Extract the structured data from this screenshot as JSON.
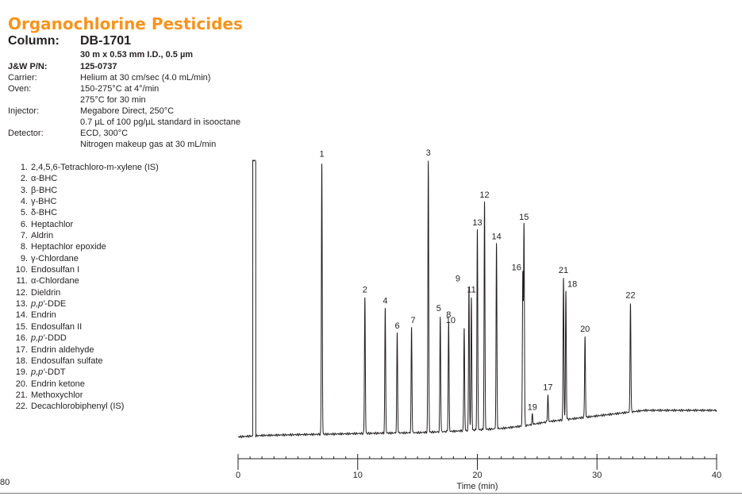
{
  "colors": {
    "title": "#f7941d",
    "text": "#231f20",
    "trace": "#231f20"
  },
  "header": {
    "title": "Organochlorine Pesticides",
    "column_label": "Column:",
    "column_value": "DB-1701"
  },
  "specs": [
    {
      "label": "",
      "lines": [
        "30 m x 0.53 mm I.D., 0.5 µm"
      ],
      "bold": true
    },
    {
      "label": "J&W P/N:",
      "lines": [
        "125-0737"
      ],
      "bold": true
    },
    {
      "label": "Carrier:",
      "lines": [
        "Helium at 30 cm/sec (4.0 mL/min)"
      ],
      "bold": false
    },
    {
      "label": "Oven:",
      "lines": [
        "150-275°C at 4°/min",
        "275°C for 30 min"
      ],
      "bold": false
    },
    {
      "label": "Injector:",
      "lines": [
        "Megabore Direct, 250°C",
        "0.7 µL of 100 pg/µL standard in isooctane"
      ],
      "bold": false
    },
    {
      "label": "Detector:",
      "lines": [
        "ECD, 300°C",
        "Nitrogen makeup gas at 30 mL/min"
      ],
      "bold": false
    }
  ],
  "compounds": [
    {
      "num": "1.",
      "name": "2,4,5,6-Tetrachloro-m-xylene (IS)"
    },
    {
      "num": "2.",
      "name": "α-BHC"
    },
    {
      "num": "3.",
      "name": "β-BHC"
    },
    {
      "num": "4.",
      "name": "γ-BHC"
    },
    {
      "num": "5.",
      "name": "δ-BHC"
    },
    {
      "num": "6.",
      "name": "Heptachlor"
    },
    {
      "num": "7.",
      "name": "Aldrin"
    },
    {
      "num": "8.",
      "name": "Heptachlor epoxide"
    },
    {
      "num": "9.",
      "name": "γ-Chlordane"
    },
    {
      "num": "10.",
      "name": "Endosulfan I"
    },
    {
      "num": "11.",
      "name": "α-Chlordane"
    },
    {
      "num": "12.",
      "name": "Dieldrin"
    },
    {
      "num": "13.",
      "name": "p,p′-DDE",
      "italic": true
    },
    {
      "num": "14.",
      "name": "Endrin"
    },
    {
      "num": "15.",
      "name": "Endosulfan II"
    },
    {
      "num": "16.",
      "name": "p,p′-DDD",
      "italic": true
    },
    {
      "num": "17.",
      "name": "Endrin aldehyde"
    },
    {
      "num": "18.",
      "name": "Endosulfan sulfate"
    },
    {
      "num": "19.",
      "name": "p,p′-DDT",
      "italic": true
    },
    {
      "num": "20.",
      "name": "Endrin ketone"
    },
    {
      "num": "21.",
      "name": "Methoxychlor"
    },
    {
      "num": "22.",
      "name": "Decachlorobiphenyl (IS)"
    }
  ],
  "page_number": "80",
  "chart_data": {
    "type": "line",
    "xlabel": "Time (min)",
    "xlim": [
      0,
      40
    ],
    "ylim": [
      0,
      100
    ],
    "x_ticks": [
      0,
      10,
      20,
      30,
      40
    ],
    "x_tick_labels": [
      "0",
      "10",
      "20",
      "30",
      "40"
    ],
    "minor_tick_step": 1,
    "y_axis_shown": false,
    "grid": false,
    "solvent_peak": {
      "x": 1.3,
      "y": 100
    },
    "baseline": [
      [
        0,
        1
      ],
      [
        2,
        1.5
      ],
      [
        5,
        1.8
      ],
      [
        8,
        2
      ],
      [
        10,
        2.2
      ],
      [
        15,
        2.5
      ],
      [
        18,
        3
      ],
      [
        20,
        3.5
      ],
      [
        22,
        4
      ],
      [
        24,
        5
      ],
      [
        26,
        6.5
      ],
      [
        28,
        7.5
      ],
      [
        30,
        8.5
      ],
      [
        32,
        9.5
      ],
      [
        34,
        10.5
      ],
      [
        36,
        10.5
      ],
      [
        38,
        10.5
      ],
      [
        40,
        10.5
      ]
    ],
    "peaks": [
      {
        "label": "1",
        "x": 7.0,
        "y": 99
      },
      {
        "label": "2",
        "x": 10.6,
        "y": 51
      },
      {
        "label": "3",
        "x": 15.9,
        "y": 100
      },
      {
        "label": "4",
        "x": 12.3,
        "y": 47
      },
      {
        "label": "5",
        "x": 16.9,
        "y": 44
      },
      {
        "label": "6",
        "x": 13.3,
        "y": 38
      },
      {
        "label": "7",
        "x": 14.5,
        "y": 40
      },
      {
        "label": "8",
        "x": 17.6,
        "y": 42
      },
      {
        "label": "9",
        "x": 19.3,
        "y": 55
      },
      {
        "label": "10",
        "x": 18.9,
        "y": 40
      },
      {
        "label": "11",
        "x": 19.5,
        "y": 51
      },
      {
        "label": "12",
        "x": 20.6,
        "y": 85
      },
      {
        "label": "13",
        "x": 20.0,
        "y": 75
      },
      {
        "label": "14",
        "x": 21.6,
        "y": 70
      },
      {
        "label": "15",
        "x": 23.9,
        "y": 77
      },
      {
        "label": "16",
        "x": 23.8,
        "y": 59
      },
      {
        "label": "17",
        "x": 25.9,
        "y": 16
      },
      {
        "label": "18",
        "x": 27.4,
        "y": 53
      },
      {
        "label": "19",
        "x": 24.6,
        "y": 9
      },
      {
        "label": "20",
        "x": 29.0,
        "y": 37
      },
      {
        "label": "21",
        "x": 27.2,
        "y": 58
      },
      {
        "label": "22",
        "x": 32.8,
        "y": 49
      }
    ]
  }
}
